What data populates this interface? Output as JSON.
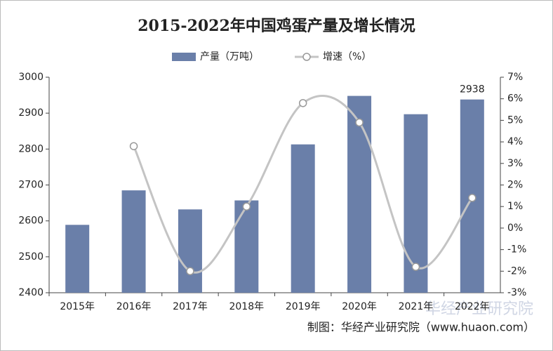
{
  "chart_data": {
    "type": "bar-line",
    "title": "2015-2022年中国鸡蛋产量及增长情况",
    "categories": [
      "2015年",
      "2016年",
      "2017年",
      "2018年",
      "2019年",
      "2020年",
      "2021年",
      "2022年"
    ],
    "series": [
      {
        "name": "产量（万吨）",
        "type": "bar",
        "color": "#6a7fa9",
        "values": [
          2589,
          2685,
          2632,
          2657,
          2813,
          2948,
          2897,
          2938
        ],
        "value_labels": [
          null,
          null,
          null,
          null,
          null,
          null,
          null,
          "2938"
        ]
      },
      {
        "name": "增速（%）",
        "type": "line",
        "axis": "y2",
        "color": "#c4c4c4",
        "values": [
          null,
          3.8,
          -2.0,
          1.0,
          5.8,
          4.9,
          -1.8,
          1.4
        ]
      }
    ],
    "ylim": [
      2400,
      3000
    ],
    "yticks": [
      2400,
      2500,
      2600,
      2700,
      2800,
      2900,
      3000
    ],
    "y2lim": [
      -3,
      7
    ],
    "y2ticks": [
      {
        "value": -3,
        "label": "-3%"
      },
      {
        "value": -2,
        "label": "-2%"
      },
      {
        "value": -1,
        "label": "-1%"
      },
      {
        "value": 0,
        "label": "0%"
      },
      {
        "value": 1,
        "label": "1%"
      },
      {
        "value": 2,
        "label": "2%"
      },
      {
        "value": 3,
        "label": "3%"
      },
      {
        "value": 4,
        "label": "4%"
      },
      {
        "value": 5,
        "label": "5%"
      },
      {
        "value": 6,
        "label": "6%"
      },
      {
        "value": 7,
        "label": "7%"
      }
    ],
    "source": "制图：华经产业研究院（www.huaon.com）",
    "watermark": "华经产业研究院"
  }
}
